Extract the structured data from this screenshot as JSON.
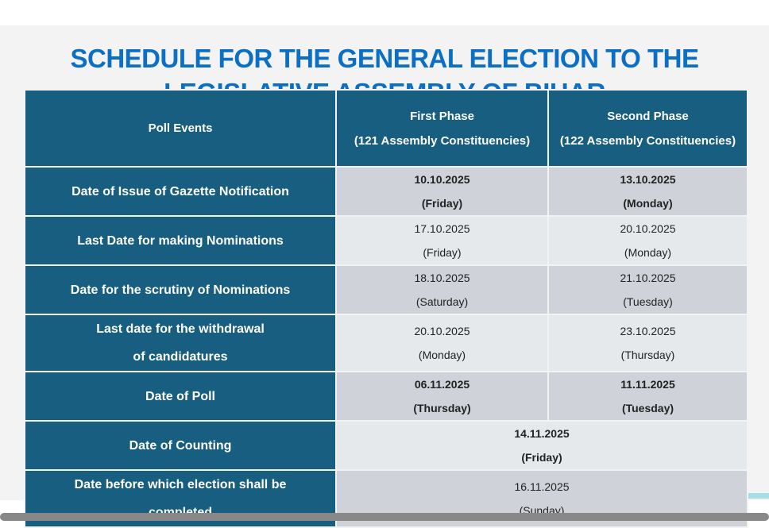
{
  "title": "SCHEDULE FOR THE GENERAL ELECTION TO THE LEGISLATIVE ASSEMBLY OF BIHAR",
  "header": {
    "events": "Poll Events",
    "phase1": "First Phase",
    "phase1_sub": "(121 Assembly Constituencies)",
    "phase2": "Second Phase",
    "phase2_sub": "(122 Assembly Constituencies)"
  },
  "rows": [
    {
      "event": "Date of Issue of Gazette Notification",
      "p1_date": "10.10.2025",
      "p1_day": "(Friday)",
      "p2_date": "13.10.2025",
      "p2_day": "(Monday)"
    },
    {
      "event": "Last Date for making Nominations",
      "p1_date": "17.10.2025",
      "p1_day": "(Friday)",
      "p2_date": "20.10.2025",
      "p2_day": "(Monday)"
    },
    {
      "event": "Date for the scrutiny of Nominations",
      "p1_date": "18.10.2025",
      "p1_day": "(Saturday)",
      "p2_date": "21.10.2025",
      "p2_day": "(Tuesday)"
    },
    {
      "event": "Last date for the withdrawal of candidatures",
      "p1_date": "20.10.2025",
      "p1_day": "(Monday)",
      "p2_date": "23.10.2025",
      "p2_day": "(Thursday)"
    },
    {
      "event": "Date of Poll",
      "p1_date": "06.11.2025",
      "p1_day": "(Thursday)",
      "p2_date": "11.11.2025",
      "p2_day": "(Tuesday)"
    },
    {
      "event": "Date of Counting",
      "date": "14.11.2025",
      "day": "(Friday)"
    },
    {
      "event": "Date before which election shall be completed",
      "date": "16.11.2025",
      "day": "(Sunday)"
    }
  ]
}
